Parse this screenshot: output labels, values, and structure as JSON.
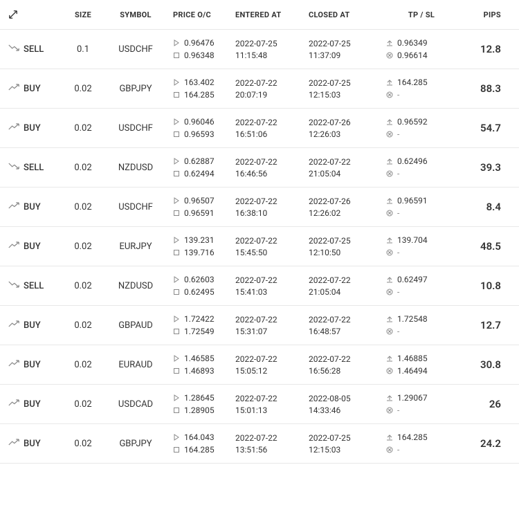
{
  "headers": {
    "type": "",
    "size": "SIZE",
    "symbol": "SYMBOL",
    "price": "PRICE O/C",
    "entered": "ENTERED AT",
    "closed": "CLOSED AT",
    "tpsl": "TP / SL",
    "pips": "PIPS"
  },
  "icon_colors": {
    "trend": "#888888",
    "mini": "#888888",
    "expand": "#333333"
  },
  "rows": [
    {
      "direction": "SELL",
      "size": "0.1",
      "symbol": "USDCHF",
      "price_open": "0.96476",
      "price_close": "0.96348",
      "entered_date": "2022-07-25",
      "entered_time": "11:15:48",
      "closed_date": "2022-07-25",
      "closed_time": "11:37:09",
      "tp": "0.96349",
      "sl": "0.96614",
      "pips": "12.8"
    },
    {
      "direction": "BUY",
      "size": "0.02",
      "symbol": "GBPJPY",
      "price_open": "163.402",
      "price_close": "164.285",
      "entered_date": "2022-07-22",
      "entered_time": "20:07:19",
      "closed_date": "2022-07-25",
      "closed_time": "12:15:03",
      "tp": "164.285",
      "sl": "-",
      "pips": "88.3"
    },
    {
      "direction": "BUY",
      "size": "0.02",
      "symbol": "USDCHF",
      "price_open": "0.96046",
      "price_close": "0.96593",
      "entered_date": "2022-07-22",
      "entered_time": "16:51:06",
      "closed_date": "2022-07-26",
      "closed_time": "12:26:03",
      "tp": "0.96592",
      "sl": "-",
      "pips": "54.7"
    },
    {
      "direction": "SELL",
      "size": "0.02",
      "symbol": "NZDUSD",
      "price_open": "0.62887",
      "price_close": "0.62494",
      "entered_date": "2022-07-22",
      "entered_time": "16:46:56",
      "closed_date": "2022-07-22",
      "closed_time": "21:05:04",
      "tp": "0.62496",
      "sl": "-",
      "pips": "39.3"
    },
    {
      "direction": "BUY",
      "size": "0.02",
      "symbol": "USDCHF",
      "price_open": "0.96507",
      "price_close": "0.96591",
      "entered_date": "2022-07-22",
      "entered_time": "16:38:10",
      "closed_date": "2022-07-26",
      "closed_time": "12:26:02",
      "tp": "0.96591",
      "sl": "-",
      "pips": "8.4"
    },
    {
      "direction": "BUY",
      "size": "0.02",
      "symbol": "EURJPY",
      "price_open": "139.231",
      "price_close": "139.716",
      "entered_date": "2022-07-22",
      "entered_time": "15:45:50",
      "closed_date": "2022-07-25",
      "closed_time": "12:10:50",
      "tp": "139.704",
      "sl": "-",
      "pips": "48.5"
    },
    {
      "direction": "SELL",
      "size": "0.02",
      "symbol": "NZDUSD",
      "price_open": "0.62603",
      "price_close": "0.62495",
      "entered_date": "2022-07-22",
      "entered_time": "15:41:03",
      "closed_date": "2022-07-22",
      "closed_time": "21:05:04",
      "tp": "0.62497",
      "sl": "-",
      "pips": "10.8"
    },
    {
      "direction": "BUY",
      "size": "0.02",
      "symbol": "GBPAUD",
      "price_open": "1.72422",
      "price_close": "1.72549",
      "entered_date": "2022-07-22",
      "entered_time": "15:31:07",
      "closed_date": "2022-07-22",
      "closed_time": "16:48:57",
      "tp": "1.72548",
      "sl": "-",
      "pips": "12.7"
    },
    {
      "direction": "BUY",
      "size": "0.02",
      "symbol": "EURAUD",
      "price_open": "1.46585",
      "price_close": "1.46893",
      "entered_date": "2022-07-22",
      "entered_time": "15:05:12",
      "closed_date": "2022-07-22",
      "closed_time": "16:56:28",
      "tp": "1.46885",
      "sl": "1.46494",
      "pips": "30.8"
    },
    {
      "direction": "BUY",
      "size": "0.02",
      "symbol": "USDCAD",
      "price_open": "1.28645",
      "price_close": "1.28905",
      "entered_date": "2022-07-22",
      "entered_time": "15:01:13",
      "closed_date": "2022-08-05",
      "closed_time": "14:33:46",
      "tp": "1.29067",
      "sl": "-",
      "pips": "26"
    },
    {
      "direction": "BUY",
      "size": "0.02",
      "symbol": "GBPJPY",
      "price_open": "164.043",
      "price_close": "164.285",
      "entered_date": "2022-07-22",
      "entered_time": "13:51:56",
      "closed_date": "2022-07-25",
      "closed_time": "12:15:03",
      "tp": "164.285",
      "sl": "-",
      "pips": "24.2"
    }
  ]
}
